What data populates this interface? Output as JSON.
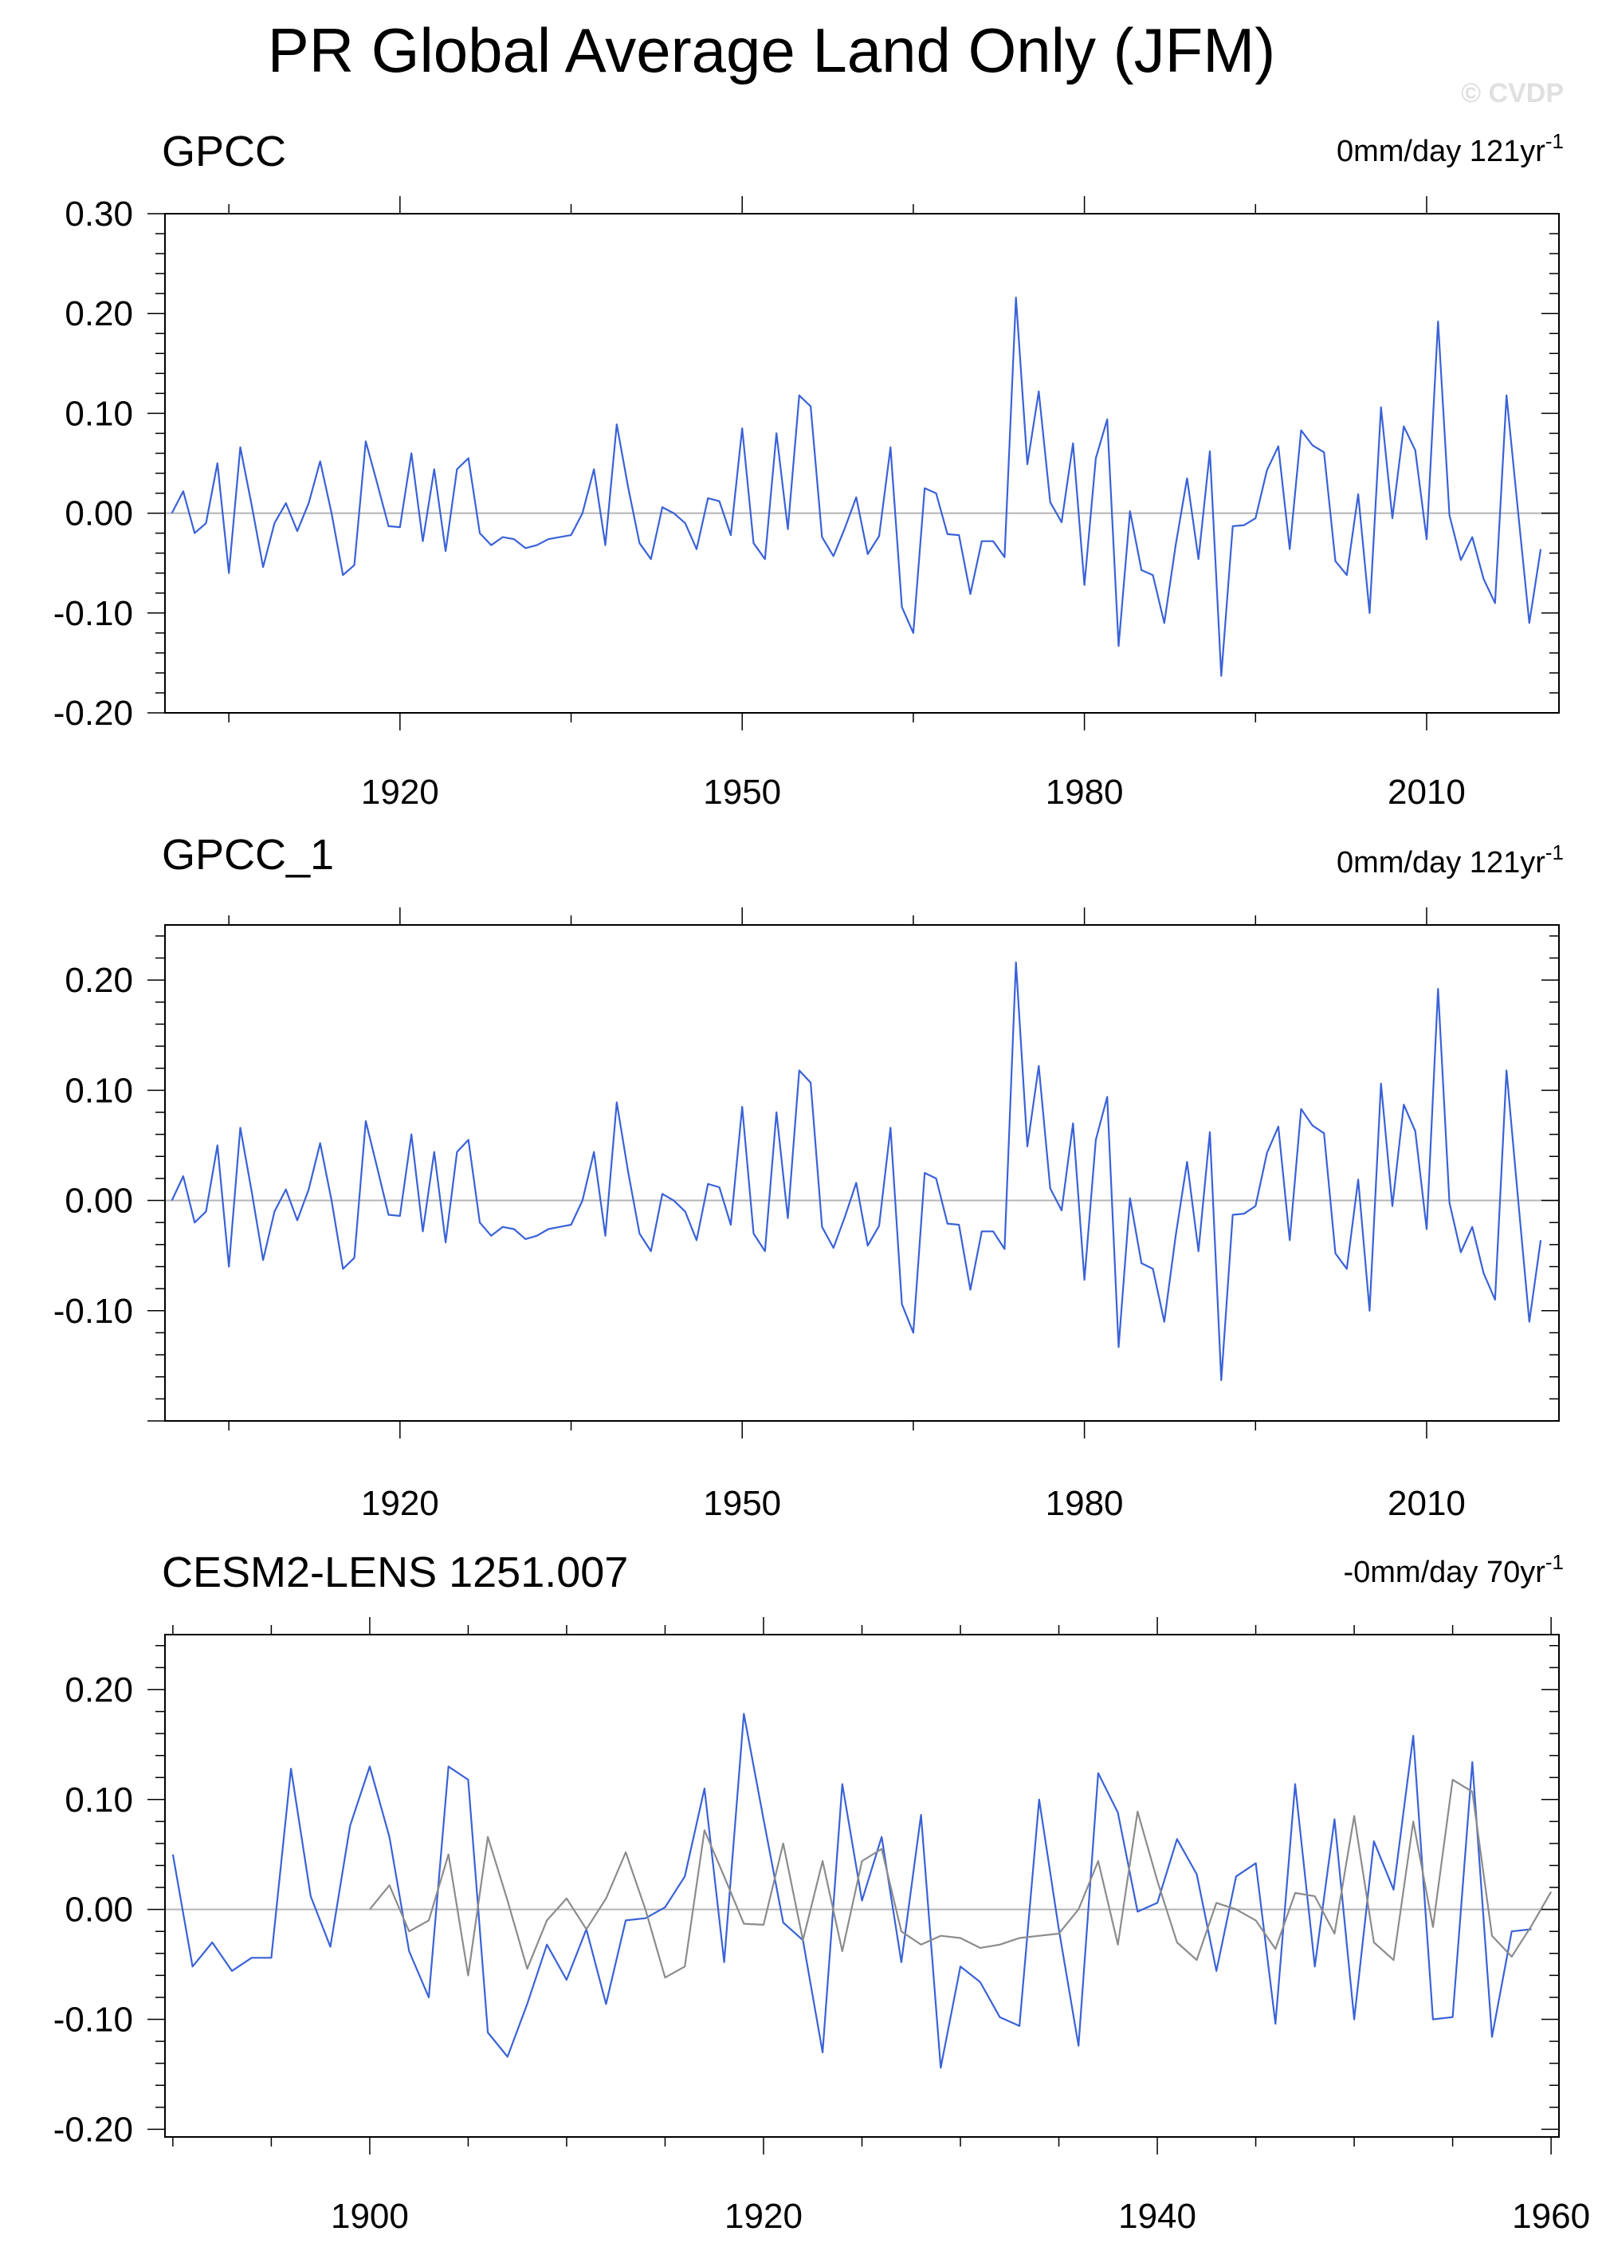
{
  "title": "PR Global Average Land Only (JFM)",
  "watermark": "© CVDP",
  "colors": {
    "series_primary": "#3a62d8",
    "series_reference": "#8c8c8c",
    "zero_line": "#b4b4b4",
    "axis": "#000000"
  },
  "chart_data": [
    {
      "type": "line",
      "label": "GPCC",
      "trend_text": "0mm/day 121yr",
      "trend_exp": "-1",
      "xlim": [
        1899.4,
        2021.6
      ],
      "ylim": [
        -0.2,
        0.3
      ],
      "xticks": [
        1920,
        1950,
        1980,
        2010
      ],
      "yticks": [
        -0.2,
        -0.1,
        0,
        0.1,
        0.2,
        0.3
      ],
      "ytick_labels": [
        "-0.20",
        "-0.10",
        "0.00",
        "0.10",
        "0.20",
        "0.30"
      ],
      "grid": false,
      "zero_line": true,
      "series": [
        {
          "x_start": 1900,
          "values": [
            0.0,
            0.022,
            -0.02,
            -0.01,
            0.05,
            -0.06,
            0.066,
            0.008,
            -0.054,
            -0.01,
            0.01,
            -0.018,
            0.01,
            0.052,
            0.0,
            -0.062,
            -0.052,
            0.072,
            0.03,
            -0.013,
            -0.014,
            0.06,
            -0.028,
            0.044,
            -0.038,
            0.044,
            0.055,
            -0.02,
            -0.032,
            -0.024,
            -0.026,
            -0.035,
            -0.032,
            -0.026,
            -0.024,
            -0.022,
            0.0,
            0.044,
            -0.032,
            0.089,
            0.026,
            -0.03,
            -0.046,
            0.006,
            0.0,
            -0.01,
            -0.036,
            0.015,
            0.012,
            -0.022,
            0.085,
            -0.03,
            -0.046,
            0.08,
            -0.016,
            0.118,
            0.107,
            -0.024,
            -0.043,
            -0.015,
            0.016,
            -0.041,
            -0.023,
            0.066,
            -0.094,
            -0.12,
            0.025,
            0.02,
            -0.021,
            -0.022,
            -0.081,
            -0.028,
            -0.028,
            -0.044,
            0.216,
            0.049,
            0.122,
            0.011,
            -0.009,
            0.07,
            -0.072,
            0.055,
            0.094,
            -0.133,
            0.002,
            -0.057,
            -0.062,
            -0.11,
            -0.032,
            0.035,
            -0.046,
            0.062,
            -0.163,
            -0.013,
            -0.012,
            -0.005,
            0.043,
            0.067,
            -0.036,
            0.083,
            0.068,
            0.061,
            -0.048,
            -0.062,
            0.019,
            -0.1,
            0.106,
            -0.005,
            0.087,
            0.063,
            -0.026,
            0.192,
            -0.002,
            -0.047,
            -0.024,
            -0.066,
            -0.09,
            0.118,
            0.003,
            -0.11,
            -0.036
          ]
        }
      ]
    },
    {
      "type": "line",
      "label": "GPCC_1",
      "trend_text": "0mm/day 121yr",
      "trend_exp": "-1",
      "xlim": [
        1899.4,
        2021.6
      ],
      "ylim": [
        -0.2,
        0.25
      ],
      "xticks": [
        1920,
        1950,
        1980,
        2010
      ],
      "yticks": [
        -0.1,
        0,
        0.1,
        0.2
      ],
      "ytick_labels": [
        "-0.10",
        "0.00",
        "0.10",
        "0.20"
      ],
      "grid": false,
      "zero_line": true,
      "series": [
        {
          "x_start": 1900,
          "values": [
            0.0,
            0.022,
            -0.02,
            -0.01,
            0.05,
            -0.06,
            0.066,
            0.008,
            -0.054,
            -0.01,
            0.01,
            -0.018,
            0.01,
            0.052,
            0.0,
            -0.062,
            -0.052,
            0.072,
            0.03,
            -0.013,
            -0.014,
            0.06,
            -0.028,
            0.044,
            -0.038,
            0.044,
            0.055,
            -0.02,
            -0.032,
            -0.024,
            -0.026,
            -0.035,
            -0.032,
            -0.026,
            -0.024,
            -0.022,
            0.0,
            0.044,
            -0.032,
            0.089,
            0.026,
            -0.03,
            -0.046,
            0.006,
            0.0,
            -0.01,
            -0.036,
            0.015,
            0.012,
            -0.022,
            0.085,
            -0.03,
            -0.046,
            0.08,
            -0.016,
            0.118,
            0.107,
            -0.024,
            -0.043,
            -0.015,
            0.016,
            -0.041,
            -0.023,
            0.066,
            -0.094,
            -0.12,
            0.025,
            0.02,
            -0.021,
            -0.022,
            -0.081,
            -0.028,
            -0.028,
            -0.044,
            0.216,
            0.049,
            0.122,
            0.011,
            -0.009,
            0.07,
            -0.072,
            0.055,
            0.094,
            -0.133,
            0.002,
            -0.057,
            -0.062,
            -0.11,
            -0.032,
            0.035,
            -0.046,
            0.062,
            -0.163,
            -0.013,
            -0.012,
            -0.005,
            0.043,
            0.067,
            -0.036,
            0.083,
            0.068,
            0.061,
            -0.048,
            -0.062,
            0.019,
            -0.1,
            0.106,
            -0.005,
            0.087,
            0.063,
            -0.026,
            0.192,
            -0.002,
            -0.047,
            -0.024,
            -0.066,
            -0.09,
            0.118,
            0.003,
            -0.11,
            -0.036
          ]
        }
      ]
    },
    {
      "type": "line",
      "label": "CESM2-LENS 1251.007",
      "trend_text": "-0mm/day 70yr",
      "trend_exp": "-1",
      "xlim": [
        1889.6,
        1960.4
      ],
      "ylim": [
        -0.207,
        0.25
      ],
      "xticks": [
        1900,
        1920,
        1940,
        1960
      ],
      "yticks": [
        -0.2,
        -0.1,
        0,
        0.1,
        0.2
      ],
      "ytick_labels": [
        "-0.20",
        "-0.10",
        "0.00",
        "0.10",
        "0.20"
      ],
      "grid": false,
      "zero_line": true,
      "series": [
        {
          "x_start": 1890,
          "values": [
            0.05,
            -0.052,
            -0.03,
            -0.056,
            -0.044,
            -0.044,
            0.128,
            0.012,
            -0.034,
            0.076,
            0.13,
            0.066,
            -0.038,
            -0.08,
            0.13,
            0.118,
            -0.112,
            -0.134,
            -0.086,
            -0.032,
            -0.064,
            -0.018,
            -0.086,
            -0.01,
            -0.008,
            0.002,
            0.03,
            0.11,
            -0.048,
            0.178,
            0.082,
            -0.012,
            -0.028,
            -0.13,
            0.114,
            0.008,
            0.066,
            -0.048,
            0.086,
            -0.144,
            -0.052,
            -0.066,
            -0.098,
            -0.106,
            0.1,
            -0.018,
            -0.124,
            0.124,
            0.088,
            -0.002,
            0.006,
            0.064,
            0.032,
            -0.056,
            0.03,
            0.042,
            -0.104,
            0.114,
            -0.052,
            0.082,
            -0.1,
            0.062,
            0.018,
            0.158,
            -0.1,
            -0.098,
            0.134,
            -0.116,
            -0.02,
            -0.018
          ]
        },
        {
          "x_start": 1900,
          "values": [
            0.0,
            0.022,
            -0.02,
            -0.01,
            0.05,
            -0.06,
            0.066,
            0.008,
            -0.054,
            -0.01,
            0.01,
            -0.018,
            0.01,
            0.052,
            0.0,
            -0.062,
            -0.052,
            0.072,
            0.03,
            -0.013,
            -0.014,
            0.06,
            -0.028,
            0.044,
            -0.038,
            0.044,
            0.055,
            -0.02,
            -0.032,
            -0.024,
            -0.026,
            -0.035,
            -0.032,
            -0.026,
            -0.024,
            -0.022,
            0.0,
            0.044,
            -0.032,
            0.089,
            0.026,
            -0.03,
            -0.046,
            0.006,
            0.0,
            -0.01,
            -0.036,
            0.015,
            0.012,
            -0.022,
            0.085,
            -0.03,
            -0.046,
            0.08,
            -0.016,
            0.118,
            0.107,
            -0.024,
            -0.043,
            -0.015,
            0.016
          ]
        }
      ]
    }
  ]
}
